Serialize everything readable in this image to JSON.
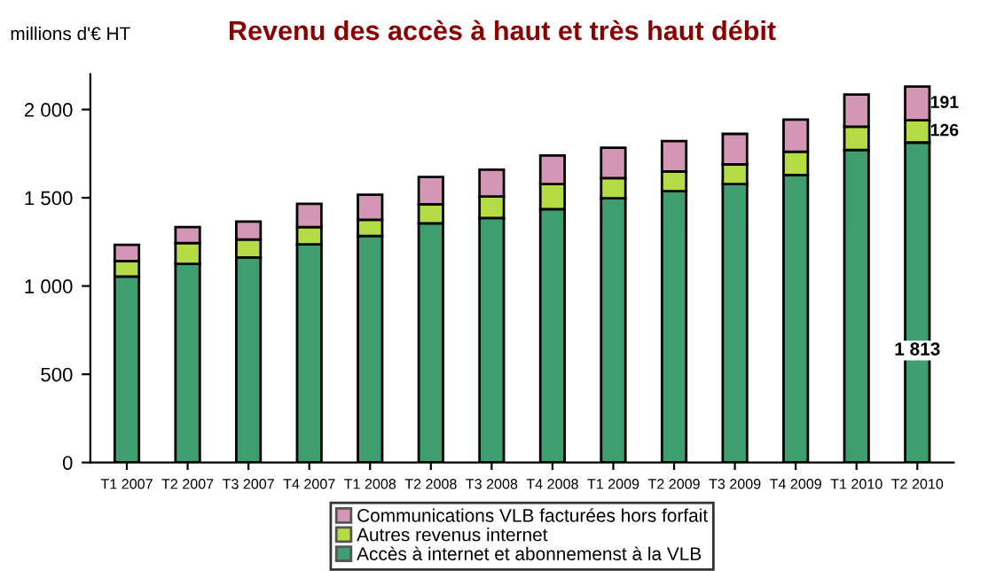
{
  "chart_data": {
    "type": "bar",
    "title": "Revenu des accès à haut et très haut débit",
    "ylabel": "millions d'€ HT",
    "categories": [
      "T1 2007",
      "T2 2007",
      "T3 2007",
      "T4 2007",
      "T1 2008",
      "T2 2008",
      "T3 2008",
      "T4 2008",
      "T1 2009",
      "T2 2009",
      "T3 2009",
      "T4 2009",
      "T1 2010",
      "T2 2010"
    ],
    "stacked": true,
    "series": [
      {
        "name": "Accès à internet et abonnemenst à la VLB",
        "color": "#3f9e70",
        "values": [
          1054,
          1125,
          1162,
          1236,
          1284,
          1355,
          1385,
          1436,
          1497,
          1537,
          1578,
          1629,
          1771,
          1813
        ],
        "value_labels": [
          null,
          null,
          null,
          null,
          null,
          null,
          null,
          null,
          null,
          null,
          null,
          null,
          null,
          "1 813"
        ]
      },
      {
        "name": "Autres revenus internet",
        "color": "#b5dc45",
        "values": [
          88,
          118,
          102,
          98,
          91,
          108,
          122,
          142,
          115,
          112,
          111,
          132,
          132,
          126
        ],
        "value_labels": [
          null,
          null,
          null,
          null,
          null,
          null,
          null,
          null,
          null,
          null,
          null,
          null,
          null,
          "126"
        ]
      },
      {
        "name": "Communications VLB facturées hors forfait",
        "color": "#d496b6",
        "values": [
          91,
          91,
          101,
          132,
          142,
          155,
          152,
          162,
          172,
          172,
          173,
          182,
          182,
          191
        ],
        "value_labels": [
          null,
          null,
          null,
          null,
          null,
          null,
          null,
          null,
          null,
          null,
          null,
          null,
          null,
          "191"
        ]
      }
    ],
    "ylim": [
      0,
      2200
    ],
    "yticks": [
      {
        "value": 0,
        "label": "0"
      },
      {
        "value": 500,
        "label": "500"
      },
      {
        "value": 1000,
        "label": "1 000"
      },
      {
        "value": 1500,
        "label": "1 500"
      },
      {
        "value": 2000,
        "label": "2 000"
      }
    ],
    "legend": "bottom",
    "grid": false
  }
}
